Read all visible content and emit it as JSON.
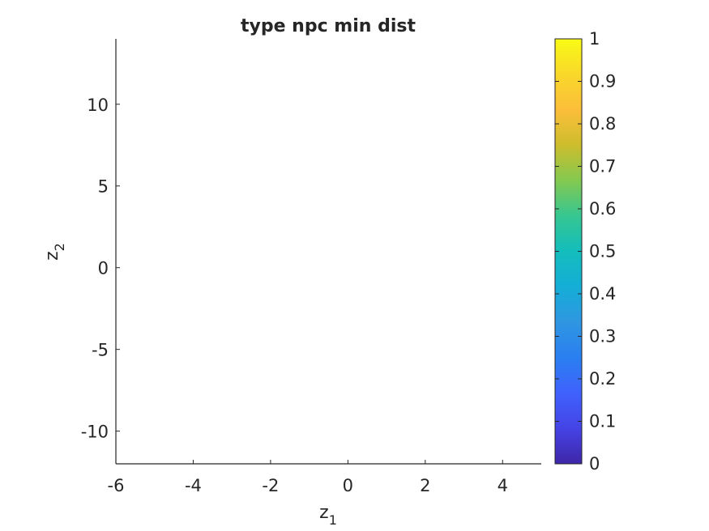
{
  "chart_data": {
    "type": "scatter",
    "title": "type npc min dist",
    "xlabel": {
      "base": "z",
      "sub": "1"
    },
    "ylabel": {
      "base": "z",
      "sub": "2"
    },
    "xlim": [
      -6,
      5
    ],
    "ylim": [
      -12,
      14
    ],
    "xticks": [
      -6,
      -4,
      -2,
      0,
      2,
      4
    ],
    "yticks": [
      -10,
      -5,
      0,
      5,
      10
    ],
    "grid": false,
    "series": [],
    "colorbar": {
      "colormap": "parula",
      "range": [
        0,
        1
      ],
      "ticks": [
        "0",
        "0.1",
        "0.2",
        "0.3",
        "0.4",
        "0.5",
        "0.6",
        "0.7",
        "0.8",
        "0.9",
        "1"
      ],
      "colors": [
        "#3e26a8",
        "#4543e6",
        "#3f62fd",
        "#2a7ff1",
        "#2f96e1",
        "#14aed7",
        "#13bdbc",
        "#36c691",
        "#83c950",
        "#cdbd2d",
        "#fcbe3a",
        "#f9d82a",
        "#f9fb15"
      ]
    }
  }
}
